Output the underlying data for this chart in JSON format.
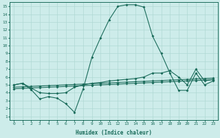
{
  "xlabel": "Humidex (Indice chaleur)",
  "bg_color": "#cdecea",
  "grid_color": "#afd8d4",
  "line_color": "#1a6b5a",
  "xlim": [
    -0.5,
    23.5
  ],
  "ylim": [
    0.5,
    15.5
  ],
  "xticks": [
    0,
    1,
    2,
    3,
    4,
    5,
    6,
    7,
    8,
    9,
    10,
    11,
    12,
    13,
    14,
    15,
    16,
    17,
    18,
    19,
    20,
    21,
    22,
    23
  ],
  "yticks": [
    1,
    2,
    3,
    4,
    5,
    6,
    7,
    8,
    9,
    10,
    11,
    12,
    13,
    14,
    15
  ],
  "line1_x": [
    0,
    1,
    2,
    3,
    4,
    5,
    6,
    7,
    8,
    9,
    10,
    11,
    12,
    13,
    14,
    15,
    16,
    17,
    18,
    19,
    20,
    21,
    22,
    23
  ],
  "line1_y": [
    5.0,
    5.2,
    4.4,
    3.2,
    3.5,
    3.3,
    2.6,
    1.5,
    4.5,
    8.5,
    11.0,
    13.3,
    15.0,
    15.2,
    15.2,
    14.9,
    11.2,
    9.0,
    6.5,
    4.3,
    4.3,
    6.5,
    5.0,
    5.5
  ],
  "line2_x": [
    0,
    1,
    2,
    3,
    4,
    5,
    6,
    7,
    8,
    9,
    10,
    11,
    12,
    13,
    14,
    15,
    16,
    17,
    18,
    19,
    20,
    21,
    22,
    23
  ],
  "line2_y": [
    5.0,
    5.2,
    4.6,
    4.0,
    3.9,
    3.9,
    4.0,
    4.7,
    5.0,
    5.2,
    5.3,
    5.5,
    5.6,
    5.7,
    5.8,
    6.0,
    6.5,
    6.5,
    6.8,
    6.0,
    5.0,
    7.0,
    5.5,
    5.7
  ],
  "line3_x": [
    0,
    1,
    2,
    3,
    4,
    5,
    6,
    7,
    8,
    9,
    10,
    11,
    12,
    13,
    14,
    15,
    16,
    17,
    18,
    19,
    20,
    21,
    22,
    23
  ],
  "line3_y": [
    4.7,
    4.75,
    4.8,
    4.85,
    4.9,
    4.95,
    5.0,
    5.05,
    5.1,
    5.15,
    5.2,
    5.25,
    5.3,
    5.35,
    5.4,
    5.45,
    5.5,
    5.55,
    5.6,
    5.65,
    5.7,
    5.75,
    5.8,
    5.85
  ],
  "line4_x": [
    0,
    1,
    2,
    3,
    4,
    5,
    6,
    7,
    8,
    9,
    10,
    11,
    12,
    13,
    14,
    15,
    16,
    17,
    18,
    19,
    20,
    21,
    22,
    23
  ],
  "line4_y": [
    4.5,
    4.55,
    4.6,
    4.65,
    4.7,
    4.75,
    4.8,
    4.85,
    4.9,
    4.95,
    5.0,
    5.05,
    5.1,
    5.15,
    5.2,
    5.25,
    5.3,
    5.35,
    5.4,
    5.45,
    5.5,
    5.55,
    5.6,
    5.65
  ]
}
